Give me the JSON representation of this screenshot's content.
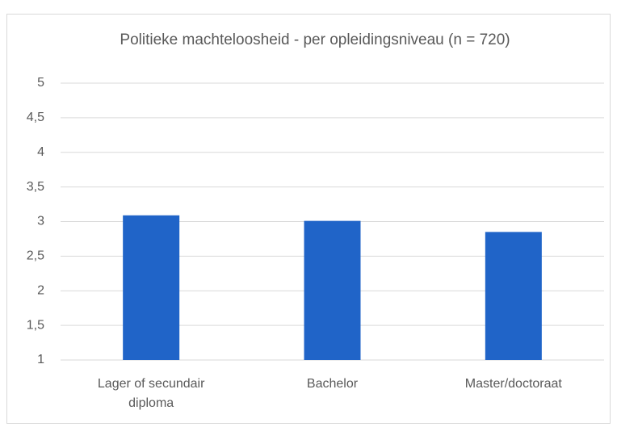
{
  "chart_data": {
    "type": "bar",
    "title": "Politieke machteloosheid - per opleidingsniveau (n = 720)",
    "categories": [
      "Lager of secundair diploma",
      "Bachelor",
      "Master/doctoraat"
    ],
    "values": [
      3.09,
      3.01,
      2.85
    ],
    "color": "#2064c8",
    "ylim": [
      1,
      5
    ],
    "yticks": [
      1,
      {
        "value": 1.5,
        "label": "1,5"
      },
      2,
      {
        "value": 2.5,
        "label": "2,5"
      },
      3,
      {
        "value": 3.5,
        "label": "3,5"
      },
      4,
      {
        "value": 4.5,
        "label": "4,5"
      },
      5
    ],
    "grid": true
  }
}
